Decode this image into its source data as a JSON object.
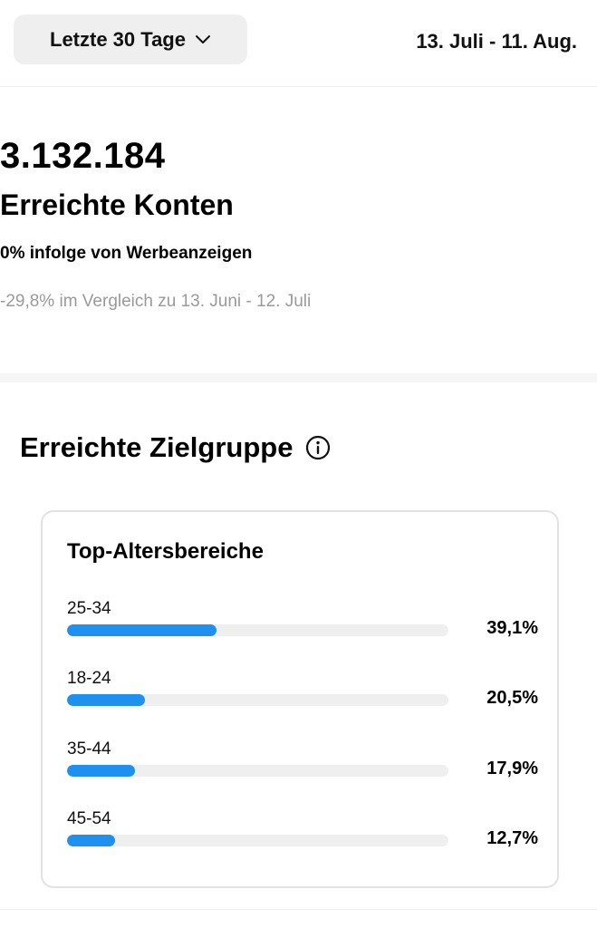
{
  "header": {
    "period_label": "Letzte 30 Tage",
    "date_range": "13. Juli - 11. Aug."
  },
  "summary": {
    "reach_number": "3.132.184",
    "reach_label": "Erreichte Konten",
    "ads_note": "0% infolge von Werbeanzeigen",
    "compare_note": "-29,8% im Vergleich zu 13. Juni - 12. Juli"
  },
  "audience": {
    "title": "Erreichte Zielgruppe",
    "card_title": "Top-Altersbereiche",
    "accent_color": "#1e90f0",
    "age_ranges": [
      {
        "label": "25-34",
        "value": "39,1%",
        "fraction": 0.391
      },
      {
        "label": "18-24",
        "value": "20,5%",
        "fraction": 0.205
      },
      {
        "label": "35-44",
        "value": "17,9%",
        "fraction": 0.179
      },
      {
        "label": "45-54",
        "value": "12,7%",
        "fraction": 0.127
      }
    ]
  }
}
